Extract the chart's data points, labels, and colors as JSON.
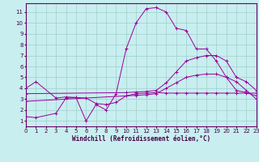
{
  "xlabel": "Windchill (Refroidissement éolien,°C)",
  "xlim": [
    0,
    23
  ],
  "ylim": [
    0.5,
    11.8
  ],
  "xticks": [
    0,
    1,
    2,
    3,
    4,
    5,
    6,
    7,
    8,
    9,
    10,
    11,
    12,
    13,
    14,
    15,
    16,
    17,
    18,
    19,
    20,
    21,
    22,
    23
  ],
  "yticks": [
    1,
    2,
    3,
    4,
    5,
    6,
    7,
    8,
    9,
    10,
    11
  ],
  "background_color": "#c8eef0",
  "grid_color": "#9ecfca",
  "line_color": "#990099",
  "lines": [
    {
      "x": [
        0,
        1,
        3,
        4,
        5,
        6,
        7,
        8,
        9,
        10,
        11,
        12,
        13,
        14,
        15,
        16,
        17,
        18,
        19,
        20,
        21,
        22,
        23
      ],
      "y": [
        4.0,
        4.6,
        3.1,
        3.2,
        3.15,
        1.0,
        2.5,
        2.0,
        3.5,
        7.6,
        10.0,
        11.3,
        11.4,
        11.0,
        9.5,
        9.3,
        7.6,
        7.6,
        6.5,
        5.0,
        4.6,
        3.8,
        3.0
      ],
      "marker": true
    },
    {
      "x": [
        0,
        10,
        11,
        12,
        13,
        14,
        15,
        16,
        17,
        18,
        19,
        20,
        21,
        22,
        23
      ],
      "y": [
        3.5,
        3.6,
        3.65,
        3.7,
        3.8,
        4.5,
        5.5,
        6.5,
        6.8,
        7.0,
        7.0,
        6.5,
        5.0,
        4.6,
        3.8
      ],
      "marker": true
    },
    {
      "x": [
        0,
        10,
        11,
        12,
        13,
        14,
        15,
        16,
        17,
        18,
        19,
        20,
        21,
        22,
        23
      ],
      "y": [
        2.8,
        3.3,
        3.35,
        3.4,
        3.5,
        4.0,
        4.5,
        5.0,
        5.2,
        5.3,
        5.3,
        5.0,
        3.8,
        3.6,
        3.3
      ],
      "marker": true
    },
    {
      "x": [
        0,
        1,
        3,
        4,
        5,
        6,
        7,
        8,
        9,
        10,
        11,
        12,
        13,
        14,
        15,
        16,
        17,
        18,
        19,
        20,
        21,
        22,
        23
      ],
      "y": [
        1.4,
        1.3,
        1.7,
        3.1,
        3.15,
        3.1,
        2.6,
        2.5,
        2.7,
        3.3,
        3.5,
        3.55,
        3.6,
        3.55,
        3.55,
        3.55,
        3.55,
        3.55,
        3.55,
        3.55,
        3.55,
        3.55,
        3.55
      ],
      "marker": true
    }
  ]
}
